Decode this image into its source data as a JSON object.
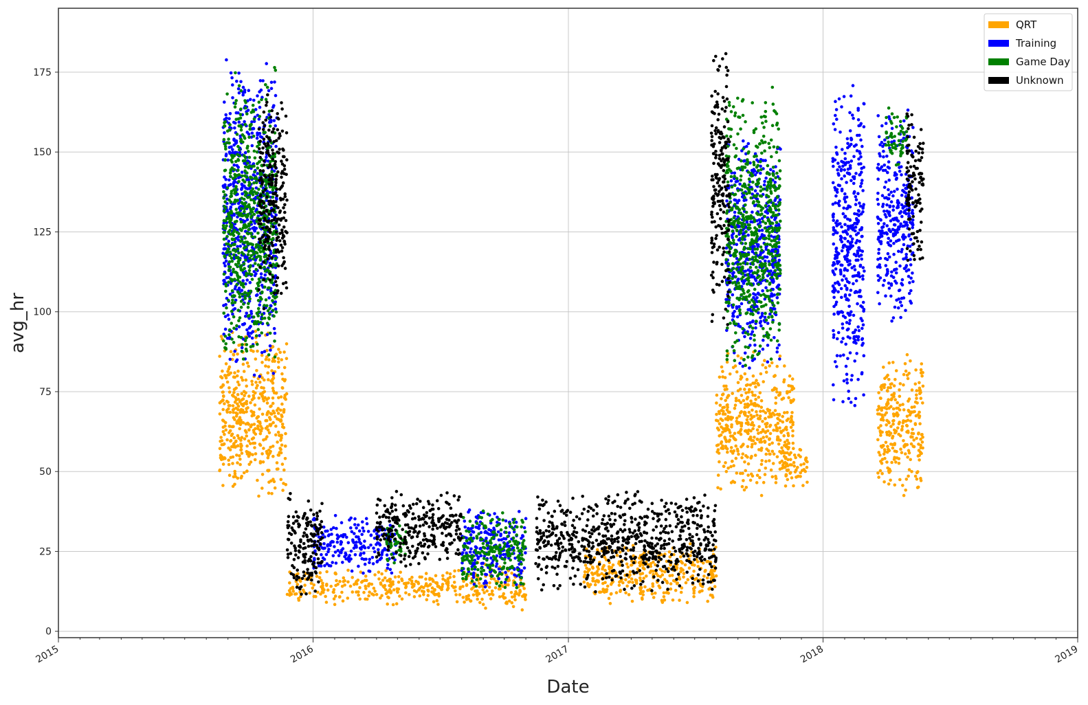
{
  "chart_data": {
    "type": "scatter",
    "title": "",
    "xlabel": "Date",
    "ylabel": "avg_hr",
    "xlim": [
      "2015-01-01",
      "2019-01-01"
    ],
    "ylim": [
      -2,
      195
    ],
    "x_ticks": [
      "2015",
      "2016",
      "2017",
      "2018",
      "2019"
    ],
    "y_ticks": [
      0,
      25,
      50,
      75,
      100,
      125,
      150,
      175
    ],
    "grid": true,
    "legend": {
      "placement": "top-right"
    },
    "series": [
      {
        "name": "QRT",
        "color": "#FFA500",
        "clusters": [
          {
            "x": [
              "2015-08-20",
              "2015-11-25"
            ],
            "y": [
              41,
              95
            ]
          },
          {
            "x": [
              "2015-11-25",
              "2016-08-01"
            ],
            "y": [
              8,
              20
            ]
          },
          {
            "x": [
              "2016-08-01",
              "2016-11-01"
            ],
            "y": [
              6,
              22
            ]
          },
          {
            "x": [
              "2017-01-20",
              "2017-08-01"
            ],
            "y": [
              8,
              28
            ]
          },
          {
            "x": [
              "2017-08-01",
              "2017-11-20"
            ],
            "y": [
              42,
              88
            ]
          },
          {
            "x": [
              "2017-11-01",
              "2017-12-10"
            ],
            "y": [
              45,
              60
            ]
          },
          {
            "x": [
              "2018-03-20",
              "2018-05-25"
            ],
            "y": [
              42,
              88
            ]
          }
        ]
      },
      {
        "name": "Training",
        "color": "#0000FF",
        "clusters": [
          {
            "x": [
              "2015-08-25",
              "2015-11-10"
            ],
            "y": [
              78,
              180
            ]
          },
          {
            "x": [
              "2016-01-01",
              "2016-05-01"
            ],
            "y": [
              17,
              37
            ]
          },
          {
            "x": [
              "2016-08-01",
              "2016-11-01"
            ],
            "y": [
              12,
              40
            ]
          },
          {
            "x": [
              "2017-08-15",
              "2017-11-01"
            ],
            "y": [
              80,
              158
            ]
          },
          {
            "x": [
              "2018-01-15",
              "2018-03-01"
            ],
            "y": [
              68,
              173
            ]
          },
          {
            "x": [
              "2018-03-20",
              "2018-05-10"
            ],
            "y": [
              95,
              165
            ]
          }
        ]
      },
      {
        "name": "Game Day",
        "color": "#008000",
        "clusters": [
          {
            "x": [
              "2015-08-25",
              "2015-11-10"
            ],
            "y": [
              80,
              177
            ]
          },
          {
            "x": [
              "2016-04-15",
              "2016-05-15"
            ],
            "y": [
              20,
              35
            ]
          },
          {
            "x": [
              "2016-08-01",
              "2016-11-01"
            ],
            "y": [
              12,
              38
            ]
          },
          {
            "x": [
              "2017-08-15",
              "2017-11-01"
            ],
            "y": [
              80,
              171
            ]
          },
          {
            "x": [
              "2018-04-01",
              "2018-05-01"
            ],
            "y": [
              145,
              165
            ]
          }
        ]
      },
      {
        "name": "Unknown",
        "color": "#000000",
        "clusters": [
          {
            "x": [
              "2015-10-15",
              "2015-11-25"
            ],
            "y": [
              100,
              170
            ]
          },
          {
            "x": [
              "2015-11-25",
              "2016-01-15"
            ],
            "y": [
              10,
              45
            ]
          },
          {
            "x": [
              "2016-04-01",
              "2016-08-01"
            ],
            "y": [
              20,
              45
            ]
          },
          {
            "x": [
              "2016-11-15",
              "2017-08-01"
            ],
            "y": [
              12,
              45
            ]
          },
          {
            "x": [
              "2017-07-25",
              "2017-08-20"
            ],
            "y": [
              95,
              183
            ]
          },
          {
            "x": [
              "2018-05-01",
              "2018-05-25"
            ],
            "y": [
              112,
              165
            ]
          }
        ]
      }
    ]
  }
}
